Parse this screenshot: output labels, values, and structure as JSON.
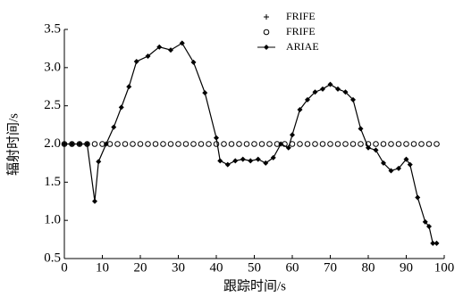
{
  "chart_data": {
    "type": "line",
    "x_label": "跟踪时间/s",
    "y_label": "辐射时间/s",
    "xlim": [
      0,
      100
    ],
    "xticks": [
      0,
      10,
      20,
      30,
      40,
      50,
      60,
      70,
      80,
      90,
      100
    ],
    "ylim": [
      0.5,
      3.5
    ],
    "yticks": [
      0.5,
      {
        "value": 1,
        "label": "1.0"
      },
      1.5,
      {
        "value": 2,
        "label": "2.0"
      },
      2.5,
      {
        "value": 3,
        "label": "3.0"
      },
      3.5
    ],
    "series": [
      {
        "name": "FRIFE",
        "color": "#000000",
        "marker": "plus",
        "line": false,
        "x": [
          0,
          2,
          4,
          6,
          8,
          10,
          12,
          14,
          16,
          18,
          20,
          22,
          24,
          26,
          28,
          30,
          32,
          34,
          36,
          38,
          40,
          42,
          44,
          46,
          48,
          50,
          52,
          54,
          56,
          58,
          60,
          62,
          64,
          66,
          68,
          70,
          72,
          74,
          76,
          78,
          80,
          82,
          84,
          86,
          88,
          90,
          92,
          94,
          96,
          98
        ],
        "values": [
          2,
          2,
          2,
          2,
          2,
          2,
          2,
          2,
          2,
          2,
          2,
          2,
          2,
          2,
          2,
          2,
          2,
          2,
          2,
          2,
          2,
          2,
          2,
          2,
          2,
          2,
          2,
          2,
          2,
          2,
          2,
          2,
          2,
          2,
          2,
          2,
          2,
          2,
          2,
          2,
          2,
          2,
          2,
          2,
          2,
          2,
          2,
          2,
          2,
          2
        ]
      },
      {
        "name": "FRIFE",
        "color": "#000000",
        "marker": "circle",
        "line": false,
        "x": [
          0,
          2,
          4,
          6,
          8,
          10,
          12,
          14,
          16,
          18,
          20,
          22,
          24,
          26,
          28,
          30,
          32,
          34,
          36,
          38,
          40,
          42,
          44,
          46,
          48,
          50,
          52,
          54,
          56,
          58,
          60,
          62,
          64,
          66,
          68,
          70,
          72,
          74,
          76,
          78,
          80,
          82,
          84,
          86,
          88,
          90,
          92,
          94,
          96,
          98
        ],
        "values": [
          2,
          2,
          2,
          2,
          2,
          2,
          2,
          2,
          2,
          2,
          2,
          2,
          2,
          2,
          2,
          2,
          2,
          2,
          2,
          2,
          2,
          2,
          2,
          2,
          2,
          2,
          2,
          2,
          2,
          2,
          2,
          2,
          2,
          2,
          2,
          2,
          2,
          2,
          2,
          2,
          2,
          2,
          2,
          2,
          2,
          2,
          2,
          2,
          2,
          2
        ]
      },
      {
        "name": "ARIAE",
        "color": "#000000",
        "marker": "diamond",
        "line": true,
        "x": [
          0,
          2,
          4,
          6,
          8,
          9,
          11,
          13,
          15,
          17,
          19,
          22,
          25,
          28,
          31,
          34,
          37,
          40,
          41,
          43,
          45,
          47,
          49,
          51,
          53,
          55,
          57,
          59,
          60,
          62,
          64,
          66,
          68,
          70,
          72,
          74,
          76,
          78,
          80,
          82,
          84,
          86,
          88,
          90,
          91,
          93,
          95,
          96,
          97,
          98
        ],
        "values": [
          2,
          2,
          2,
          2,
          1.25,
          1.77,
          2,
          2.22,
          2.48,
          2.75,
          3.08,
          3.15,
          3.27,
          3.23,
          3.32,
          3.07,
          2.67,
          2.08,
          1.78,
          1.73,
          1.78,
          1.8,
          1.78,
          1.8,
          1.75,
          1.82,
          2,
          1.95,
          2.12,
          2.45,
          2.58,
          2.68,
          2.72,
          2.78,
          2.72,
          2.68,
          2.58,
          2.2,
          1.95,
          1.92,
          1.75,
          1.65,
          1.68,
          1.8,
          1.73,
          1.3,
          0.98,
          0.92,
          0.7,
          0.7
        ]
      }
    ],
    "legend": "top-center"
  }
}
